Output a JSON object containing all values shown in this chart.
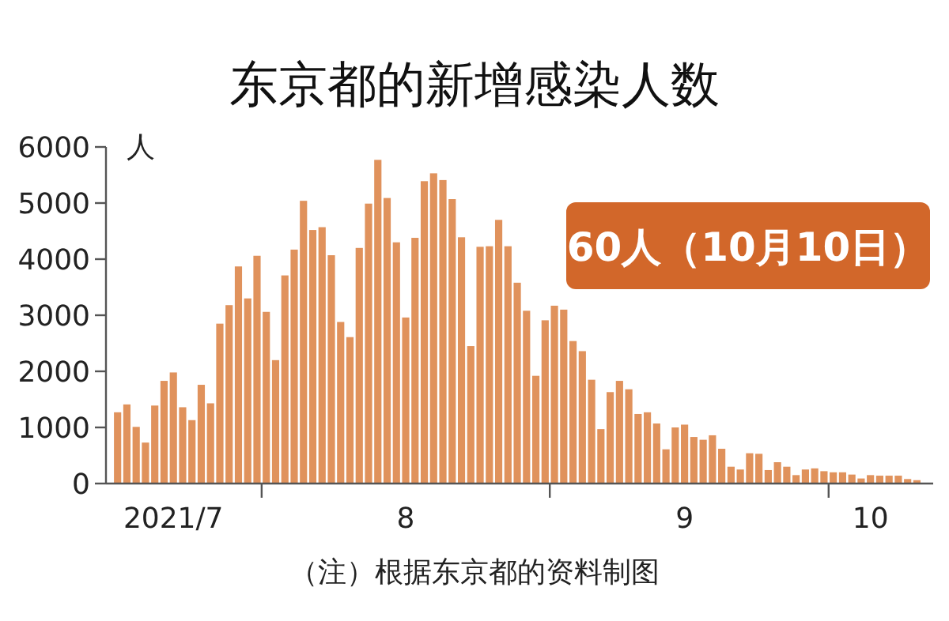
{
  "chart_data": {
    "type": "bar",
    "title": "东京都的新增感染人数",
    "ylabel": "人",
    "x": [
      "2021-07-16",
      "2021-07-17",
      "2021-07-18",
      "2021-07-19",
      "2021-07-20",
      "2021-07-21",
      "2021-07-22",
      "2021-07-23",
      "2021-07-24",
      "2021-07-25",
      "2021-07-26",
      "2021-07-27",
      "2021-07-28",
      "2021-07-29",
      "2021-07-30",
      "2021-07-31",
      "2021-08-01",
      "2021-08-02",
      "2021-08-03",
      "2021-08-04",
      "2021-08-05",
      "2021-08-06",
      "2021-08-07",
      "2021-08-08",
      "2021-08-09",
      "2021-08-10",
      "2021-08-11",
      "2021-08-12",
      "2021-08-13",
      "2021-08-14",
      "2021-08-15",
      "2021-08-16",
      "2021-08-17",
      "2021-08-18",
      "2021-08-19",
      "2021-08-20",
      "2021-08-21",
      "2021-08-22",
      "2021-08-23",
      "2021-08-24",
      "2021-08-25",
      "2021-08-26",
      "2021-08-27",
      "2021-08-28",
      "2021-08-29",
      "2021-08-30",
      "2021-08-31",
      "2021-09-01",
      "2021-09-02",
      "2021-09-03",
      "2021-09-04",
      "2021-09-05",
      "2021-09-06",
      "2021-09-07",
      "2021-09-08",
      "2021-09-09",
      "2021-09-10",
      "2021-09-11",
      "2021-09-12",
      "2021-09-13",
      "2021-09-14",
      "2021-09-15",
      "2021-09-16",
      "2021-09-17",
      "2021-09-18",
      "2021-09-19",
      "2021-09-20",
      "2021-09-21",
      "2021-09-22",
      "2021-09-23",
      "2021-09-24",
      "2021-09-25",
      "2021-09-26",
      "2021-09-27",
      "2021-09-28",
      "2021-09-29",
      "2021-09-30",
      "2021-10-01",
      "2021-10-02",
      "2021-10-03",
      "2021-10-04",
      "2021-10-05",
      "2021-10-06",
      "2021-10-07",
      "2021-10-08",
      "2021-10-09",
      "2021-10-10"
    ],
    "values": [
      1270,
      1410,
      1010,
      730,
      1390,
      1830,
      1980,
      1360,
      1130,
      1760,
      1430,
      2850,
      3180,
      3870,
      3300,
      4060,
      3060,
      2200,
      3710,
      4170,
      5040,
      4520,
      4570,
      4070,
      2880,
      2610,
      4200,
      4990,
      5770,
      5090,
      4300,
      2960,
      4380,
      5390,
      5530,
      5410,
      5070,
      4390,
      2450,
      4220,
      4230,
      4700,
      4230,
      3580,
      3080,
      1920,
      2910,
      3170,
      3100,
      2540,
      2360,
      1850,
      970,
      1630,
      1830,
      1680,
      1240,
      1270,
      1070,
      610,
      1000,
      1050,
      830,
      780,
      860,
      620,
      300,
      250,
      540,
      530,
      240,
      380,
      300,
      150,
      250,
      270,
      220,
      200,
      200,
      160,
      90,
      150,
      140,
      140,
      140,
      80,
      60
    ],
    "color": "#e0925c",
    "xlim": [
      "2021-07-14T18:00",
      "2021-10-11T18:00"
    ],
    "xticks": [
      {
        "value": "2021-07-22",
        "label": "2021/7"
      },
      {
        "value": "2021-07-31T12:00",
        "label": null
      },
      {
        "value": "2021-08-16",
        "label": "8"
      },
      {
        "value": "2021-08-31T12:00",
        "label": null
      },
      {
        "value": "2021-09-15",
        "label": "9"
      },
      {
        "value": "2021-09-30T12:00",
        "label": null
      },
      {
        "value": "2021-10-05",
        "label": "10"
      }
    ],
    "ylim": [
      0,
      6000
    ],
    "yticks": [
      0,
      1000,
      2000,
      3000,
      4000,
      5000,
      6000
    ],
    "grid": false,
    "annotations": [
      "60人（10月10日）",
      "（注）根据东京都的资料制图"
    ]
  }
}
